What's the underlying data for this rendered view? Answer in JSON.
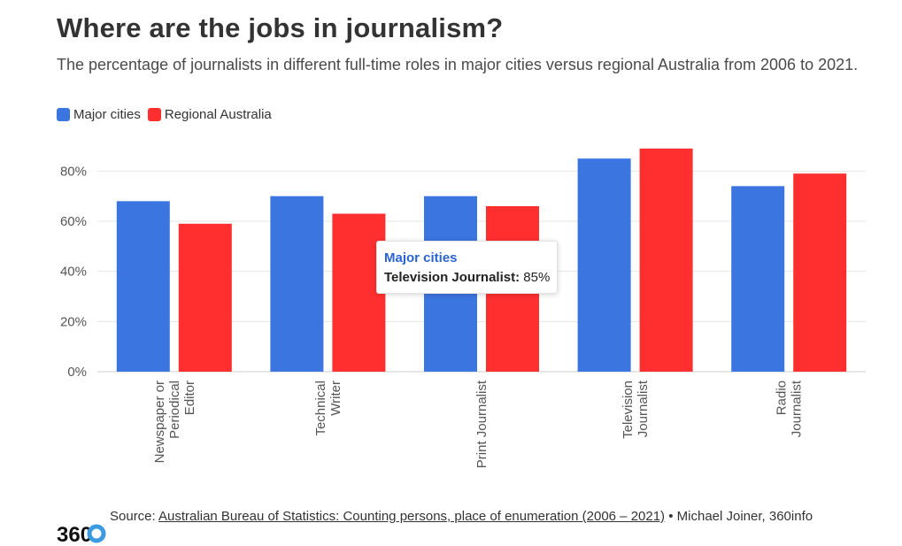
{
  "title": "Where are the jobs in journalism?",
  "subtitle": "The percentage of journalists in different full-time roles in major cities versus regional Australia from 2006 to 2021.",
  "colors": {
    "major": "#3b75e0",
    "regional": "#ff2f2f",
    "grid": "#e6e6e6",
    "tooltip_title": "#2a63d4"
  },
  "legend": {
    "major_label": "Major cities",
    "regional_label": "Regional Australia"
  },
  "tooltip": {
    "series": "Major cities",
    "category": "Television Journalist:",
    "value": "85%"
  },
  "footer": {
    "source_prefix": "Source:",
    "source_link": "Australian Bureau of Statistics: Counting persons, place of enumeration (2006 – 2021)",
    "credit": "• Michael Joiner, 360info",
    "logo_text": "360"
  },
  "chart_data": {
    "type": "bar",
    "title": "Where are the jobs in journalism?",
    "xlabel": "",
    "ylabel": "",
    "ylim": [
      0,
      90
    ],
    "yticks": [
      0,
      20,
      40,
      60,
      80
    ],
    "ytick_labels": [
      "0%",
      "20%",
      "40%",
      "60%",
      "80%"
    ],
    "categories": [
      [
        "Newspaper or",
        "Periodical",
        "Editor"
      ],
      [
        "Technical",
        "Writer"
      ],
      [
        "Print Journalist"
      ],
      [
        "Television",
        "Journalist"
      ],
      [
        "Radio",
        "Journalist"
      ]
    ],
    "series": [
      {
        "name": "Major cities",
        "values": [
          68,
          70,
          70,
          85,
          74
        ]
      },
      {
        "name": "Regional Australia",
        "values": [
          59,
          63,
          66,
          89,
          79
        ]
      }
    ]
  }
}
